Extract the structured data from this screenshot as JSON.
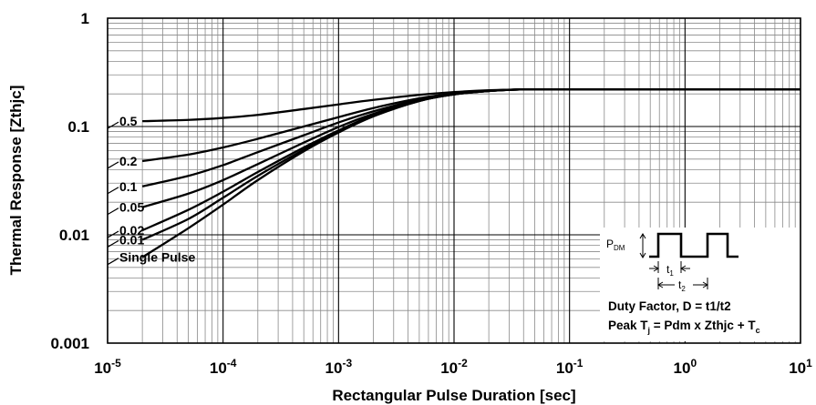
{
  "chart_data": {
    "type": "line",
    "title": "",
    "xlabel": "Rectangular Pulse Duration [sec]",
    "ylabel": "Thermal Response [Zthjc]",
    "xscale": "log",
    "yscale": "log",
    "xlim": [
      1e-05,
      10
    ],
    "ylim": [
      0.001,
      1
    ],
    "grid": true,
    "x_ticks": [
      {
        "value": 1e-05,
        "base": "10",
        "exp": "-5"
      },
      {
        "value": 0.0001,
        "base": "10",
        "exp": "-4"
      },
      {
        "value": 0.001,
        "base": "10",
        "exp": "-3"
      },
      {
        "value": 0.01,
        "base": "10",
        "exp": "-2"
      },
      {
        "value": 0.1,
        "base": "10",
        "exp": "-1"
      },
      {
        "value": 1,
        "base": "10",
        "exp": "0"
      },
      {
        "value": 10,
        "base": "10",
        "exp": "1"
      }
    ],
    "y_ticks": [
      {
        "value": 1,
        "label": "1"
      },
      {
        "value": 0.1,
        "label": "0.1"
      },
      {
        "value": 0.01,
        "label": "0.01"
      },
      {
        "value": 0.001,
        "label": "0.001"
      }
    ],
    "x": [
      2e-05,
      5e-05,
      0.0001,
      0.0002,
      0.0005,
      0.001,
      0.002,
      0.005,
      0.01,
      0.02,
      0.04,
      0.1,
      1,
      10
    ],
    "series": [
      {
        "name": "0.5",
        "values": [
          0.112,
          0.115,
          0.12,
          0.128,
          0.145,
          0.16,
          0.176,
          0.196,
          0.208,
          0.216,
          0.22,
          0.22,
          0.22,
          0.22
        ]
      },
      {
        "name": "0.2",
        "values": [
          0.048,
          0.055,
          0.064,
          0.077,
          0.1,
          0.122,
          0.148,
          0.182,
          0.202,
          0.214,
          0.22,
          0.22,
          0.22,
          0.22
        ]
      },
      {
        "name": "0.1",
        "values": [
          0.028,
          0.035,
          0.044,
          0.058,
          0.083,
          0.109,
          0.138,
          0.178,
          0.2,
          0.214,
          0.22,
          0.22,
          0.22,
          0.22
        ]
      },
      {
        "name": "0.05",
        "values": [
          0.018,
          0.024,
          0.032,
          0.045,
          0.071,
          0.099,
          0.131,
          0.175,
          0.199,
          0.213,
          0.22,
          0.22,
          0.22,
          0.22
        ]
      },
      {
        "name": "0.02",
        "values": [
          0.011,
          0.017,
          0.025,
          0.038,
          0.064,
          0.092,
          0.127,
          0.173,
          0.198,
          0.213,
          0.22,
          0.22,
          0.22,
          0.22
        ]
      },
      {
        "name": "0.01",
        "values": [
          0.009,
          0.014,
          0.022,
          0.035,
          0.061,
          0.09,
          0.125,
          0.172,
          0.198,
          0.213,
          0.22,
          0.22,
          0.22,
          0.22
        ]
      },
      {
        "name": "Single Pulse",
        "values": [
          0.0062,
          0.0115,
          0.019,
          0.032,
          0.059,
          0.088,
          0.124,
          0.172,
          0.198,
          0.213,
          0.22,
          0.22,
          0.22,
          0.22
        ]
      }
    ],
    "inset": {
      "pdm_base": "P",
      "pdm_sub": "DM",
      "t1_base": "t",
      "t1_sub": "1",
      "t2_base": "t",
      "t2_sub": "2",
      "line1": "Duty Factor, D = t1/t2",
      "line2_a": "Peak T",
      "line2_a_sub": "j",
      "line2_b": " = Pdm x Zthjc + T",
      "line2_b_sub": "c"
    }
  }
}
